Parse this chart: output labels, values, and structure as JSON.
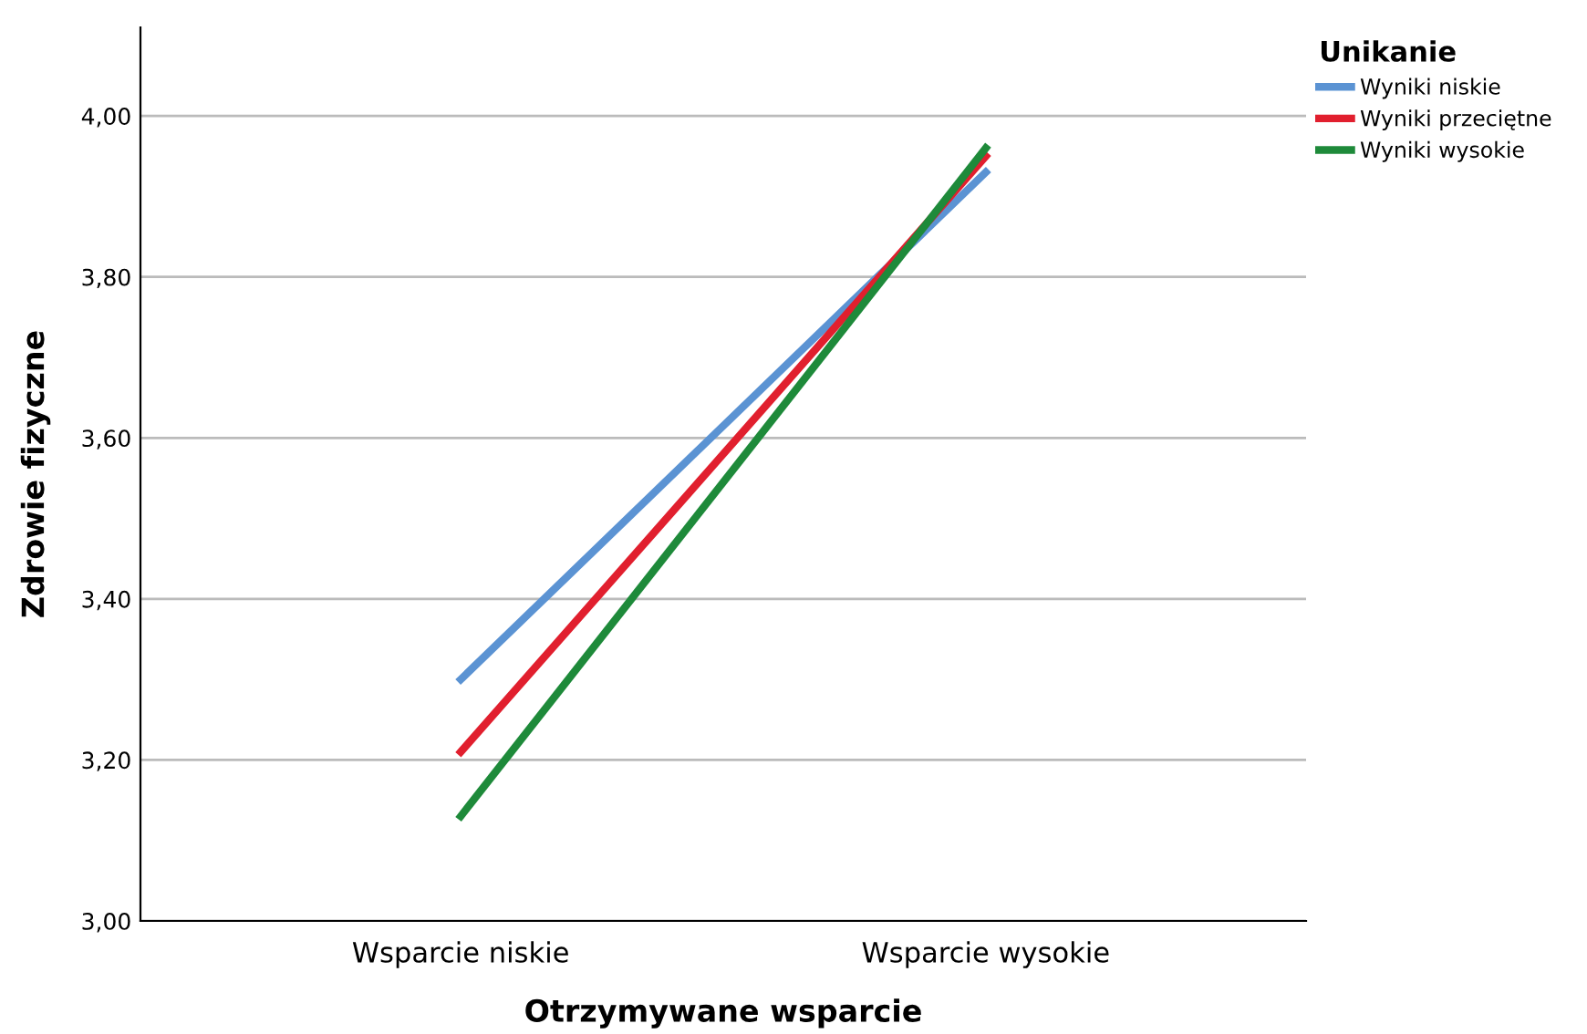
{
  "chart_data": {
    "type": "line",
    "xlabel": "Otrzymywane wsparcie",
    "ylabel": "Zdrowie fizyczne",
    "legend_title": "Unikanie",
    "categories": [
      "Wsparcie niskie",
      "Wsparcie wysokie"
    ],
    "series": [
      {
        "name": "Wyniki niskie",
        "color": "#5b93d3",
        "values": [
          3.3,
          3.93
        ]
      },
      {
        "name": "Wyniki przeciętne",
        "color": "#e11f2e",
        "values": [
          3.21,
          3.95
        ]
      },
      {
        "name": "Wyniki wysokie",
        "color": "#1e8a3a",
        "values": [
          3.13,
          3.96
        ]
      }
    ],
    "ylim": [
      3.0,
      4.11
    ],
    "yticks": [
      {
        "value": 3.0,
        "label": "3,00"
      },
      {
        "value": 3.2,
        "label": "3,20"
      },
      {
        "value": 3.4,
        "label": "3,40"
      },
      {
        "value": 3.6,
        "label": "3,60"
      },
      {
        "value": 3.8,
        "label": "3,80"
      },
      {
        "value": 4.0,
        "label": "4,00"
      }
    ],
    "grid": "y",
    "legend": "top right",
    "marker": "none",
    "line_style": "solid"
  }
}
